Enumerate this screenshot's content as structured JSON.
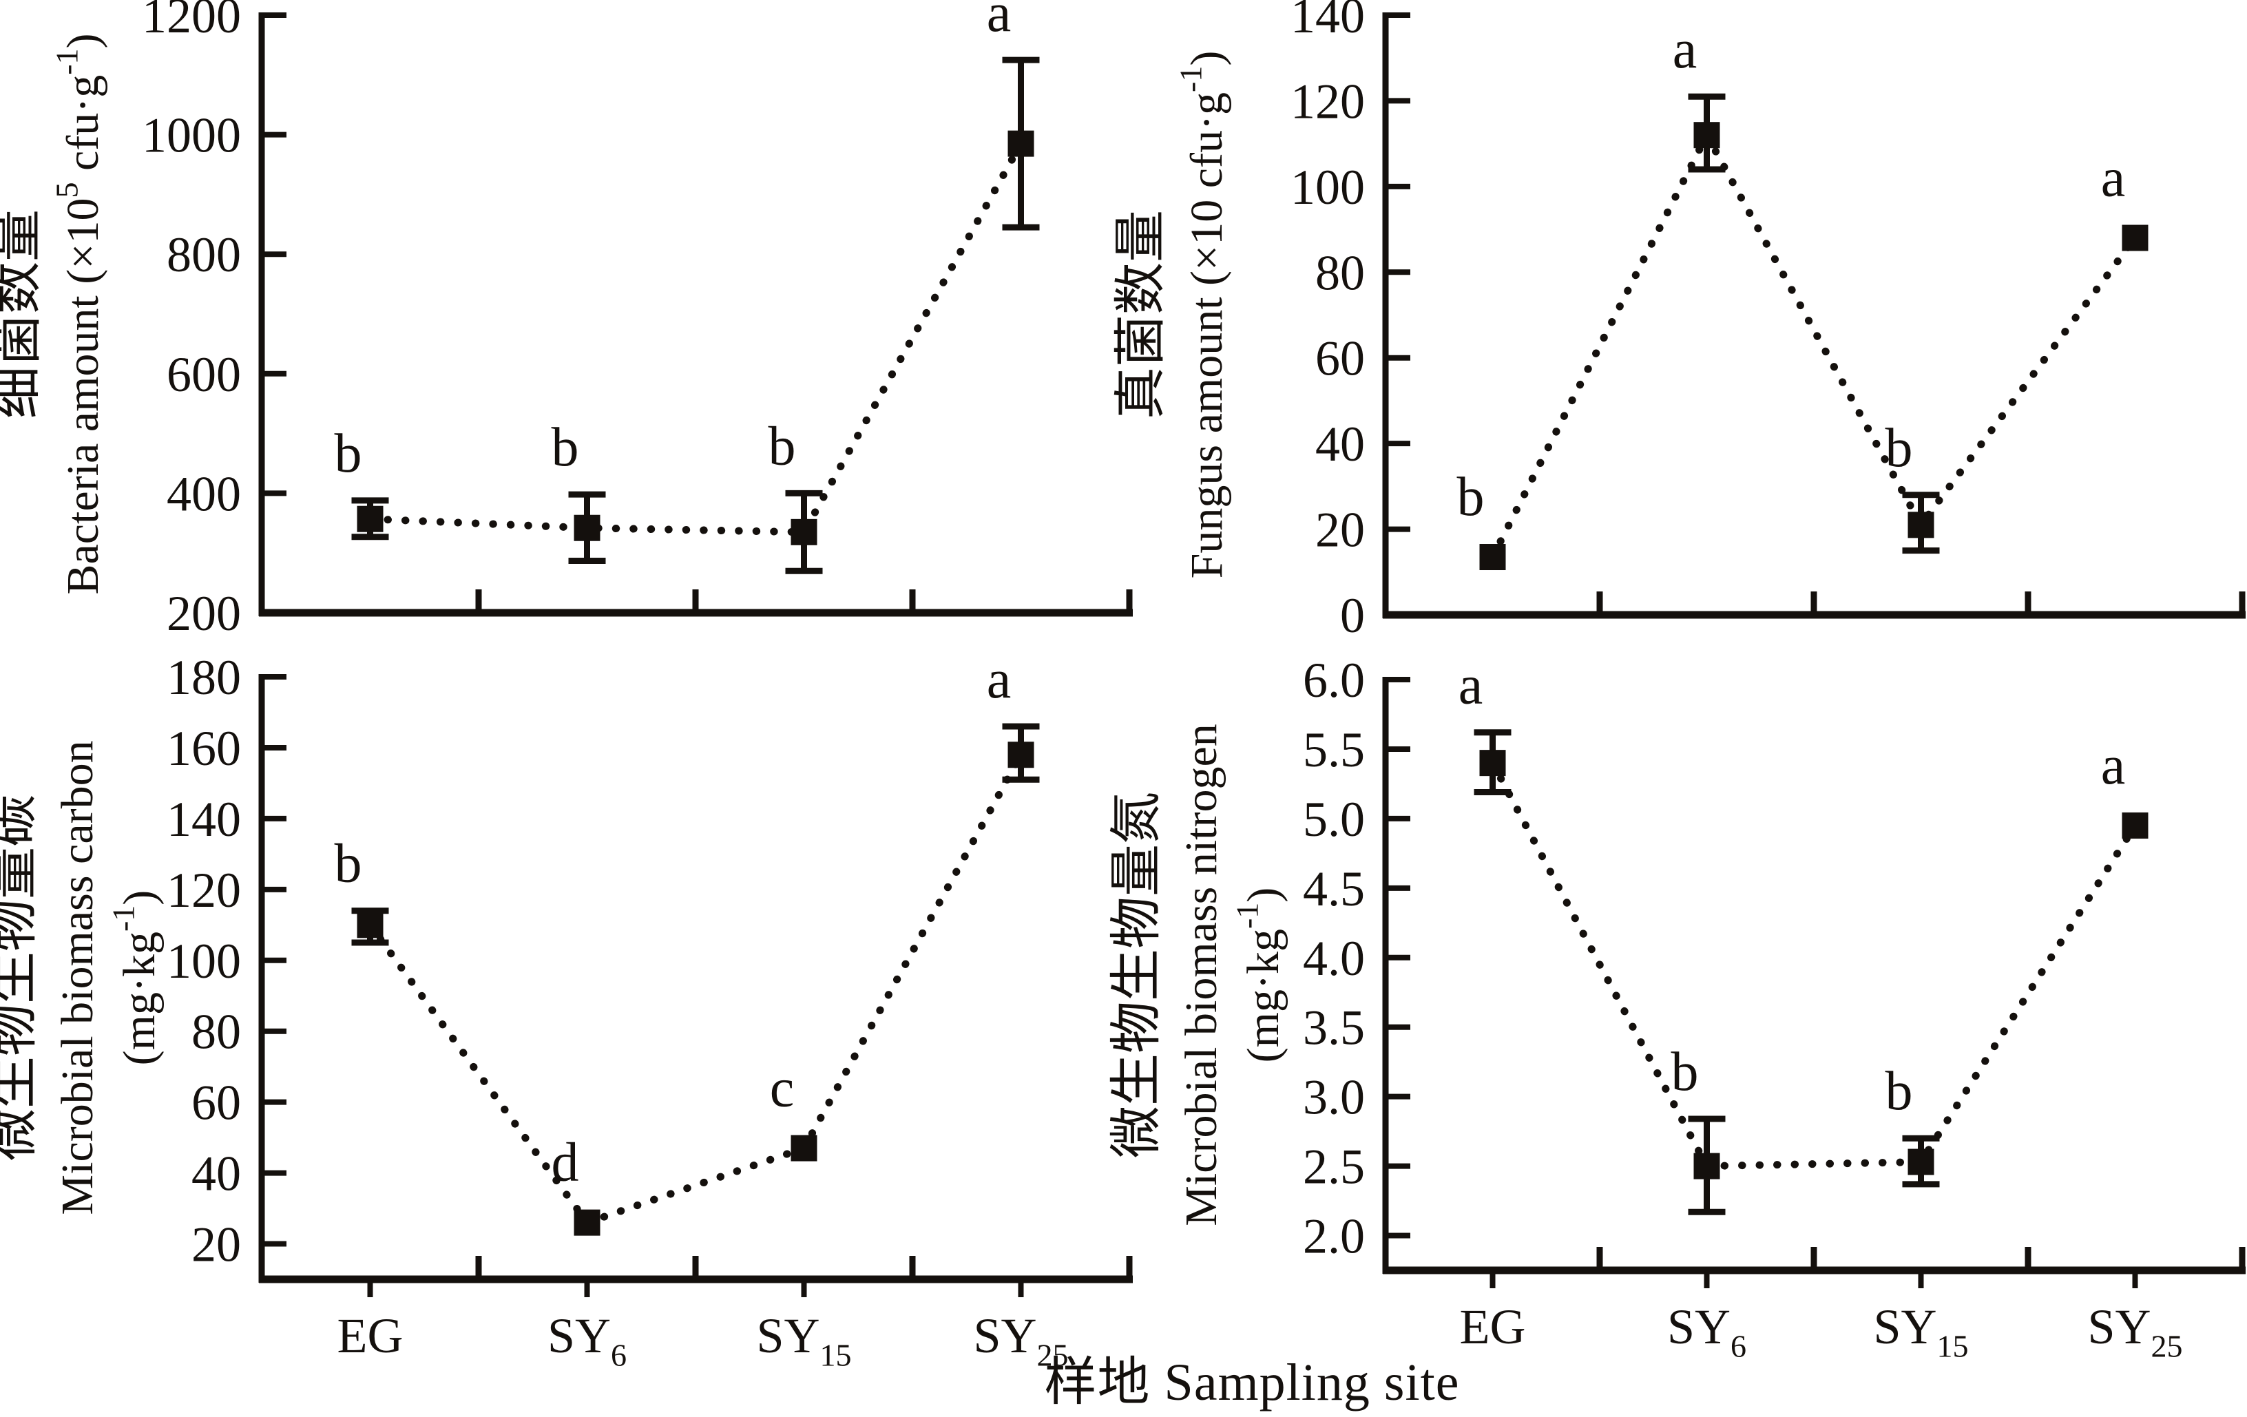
{
  "figure": {
    "xlabel": "样地 Sampling site",
    "background": "#ffffff",
    "ink_color": "#14100d"
  },
  "chart_data": [
    {
      "id": "bacteria-amount",
      "type": "line",
      "position": "top-left",
      "marker": "filled-square",
      "line_style": "dotted",
      "grid": false,
      "legend": "none",
      "title_lines": [
        [
          {
            "t": "细菌数量"
          }
        ],
        [
          {
            "t": "Bacteria amount (×10"
          },
          {
            "sup": "5"
          },
          {
            "t": " cfu·g"
          },
          {
            "sup": "-1"
          },
          {
            "t": ")"
          }
        ]
      ],
      "categories": [
        [
          {
            "t": "EG"
          }
        ],
        [
          {
            "t": "SY"
          },
          {
            "sub": "6"
          }
        ],
        [
          {
            "t": "SY"
          },
          {
            "sub": "15"
          }
        ],
        [
          {
            "t": "SY"
          },
          {
            "sub": "25"
          }
        ]
      ],
      "show_x_tick_labels": false,
      "ylim": [
        200,
        1200
      ],
      "ytick_values": [
        200,
        400,
        600,
        800,
        1000,
        1200
      ],
      "ytick_labels": [
        "200",
        "400",
        "600",
        "800",
        "1000",
        "1200"
      ],
      "points": [
        {
          "category": "EG",
          "value": 357,
          "err_low": 327,
          "err_high": 388,
          "letter": "b"
        },
        {
          "category": "SY6",
          "value": 342,
          "err_low": 287,
          "err_high": 398,
          "letter": "b"
        },
        {
          "category": "SY15",
          "value": 335,
          "err_low": 270,
          "err_high": 400,
          "letter": "b"
        },
        {
          "category": "SY25",
          "value": 985,
          "err_low": 845,
          "err_high": 1125,
          "letter": "a"
        }
      ]
    },
    {
      "id": "fungus-amount",
      "type": "line",
      "position": "top-right",
      "marker": "filled-square",
      "line_style": "dotted",
      "grid": false,
      "legend": "none",
      "title_lines": [
        [
          {
            "t": "真菌数量"
          }
        ],
        [
          {
            "t": "Fungus amount (×10 cfu·g"
          },
          {
            "sup": "-1"
          },
          {
            "t": ")"
          }
        ]
      ],
      "categories": [
        [
          {
            "t": "EG"
          }
        ],
        [
          {
            "t": "SY"
          },
          {
            "sub": "6"
          }
        ],
        [
          {
            "t": "SY"
          },
          {
            "sub": "15"
          }
        ],
        [
          {
            "t": "SY"
          },
          {
            "sub": "25"
          }
        ]
      ],
      "show_x_tick_labels": false,
      "ylim": [
        0,
        140
      ],
      "ytick_values": [
        0,
        20,
        40,
        60,
        80,
        100,
        120,
        140
      ],
      "ytick_labels": [
        "0",
        "20",
        "40",
        "60",
        "80",
        "100",
        "120",
        "140"
      ],
      "points": [
        {
          "category": "EG",
          "value": 13.5,
          "err_low": null,
          "err_high": null,
          "letter": "b"
        },
        {
          "category": "SY6",
          "value": 112,
          "err_low": 104,
          "err_high": 121,
          "letter": "a"
        },
        {
          "category": "SY15",
          "value": 21,
          "err_low": 15,
          "err_high": 28,
          "letter": "b"
        },
        {
          "category": "SY25",
          "value": 88,
          "err_low": null,
          "err_high": null,
          "letter": "a"
        }
      ]
    },
    {
      "id": "microbial-biomass-carbon",
      "type": "line",
      "position": "bottom-left",
      "marker": "filled-square",
      "line_style": "dotted",
      "grid": false,
      "legend": "none",
      "title_lines": [
        [
          {
            "t": "微生物生物量碳"
          }
        ],
        [
          {
            "t": "Microbial biomass carbon"
          }
        ],
        [
          {
            "t": "(mg·kg"
          },
          {
            "sup": "-1"
          },
          {
            "t": ")"
          }
        ]
      ],
      "categories": [
        [
          {
            "t": "EG"
          }
        ],
        [
          {
            "t": "SY"
          },
          {
            "sub": "6"
          }
        ],
        [
          {
            "t": "SY"
          },
          {
            "sub": "15"
          }
        ],
        [
          {
            "t": "SY"
          },
          {
            "sub": "25"
          }
        ]
      ],
      "show_x_tick_labels": true,
      "ylim": [
        10,
        180
      ],
      "ytick_values": [
        20,
        40,
        60,
        80,
        100,
        120,
        140,
        160,
        180
      ],
      "ytick_labels": [
        "20",
        "40",
        "60",
        "80",
        "100",
        "120",
        "140",
        "160",
        "180"
      ],
      "points": [
        {
          "category": "EG",
          "value": 110,
          "err_low": 105,
          "err_high": 114,
          "letter": "b"
        },
        {
          "category": "SY6",
          "value": 26,
          "err_low": null,
          "err_high": null,
          "letter": "d"
        },
        {
          "category": "SY15",
          "value": 47,
          "err_low": null,
          "err_high": null,
          "letter": "c"
        },
        {
          "category": "SY25",
          "value": 158,
          "err_low": 151,
          "err_high": 166,
          "letter": "a"
        }
      ]
    },
    {
      "id": "microbial-biomass-nitrogen",
      "type": "line",
      "position": "bottom-right",
      "marker": "filled-square",
      "line_style": "dotted",
      "grid": false,
      "legend": "none",
      "title_lines": [
        [
          {
            "t": "微生物生物量氮"
          }
        ],
        [
          {
            "t": "Microbial biomass nitrogen"
          }
        ],
        [
          {
            "t": "(mg·kg"
          },
          {
            "sup": "-1"
          },
          {
            "t": ")"
          }
        ]
      ],
      "categories": [
        [
          {
            "t": "EG"
          }
        ],
        [
          {
            "t": "SY"
          },
          {
            "sub": "6"
          }
        ],
        [
          {
            "t": "SY"
          },
          {
            "sub": "15"
          }
        ],
        [
          {
            "t": "SY"
          },
          {
            "sub": "25"
          }
        ]
      ],
      "show_x_tick_labels": true,
      "ylim": [
        1.75,
        6.0
      ],
      "ytick_values": [
        2.0,
        2.5,
        3.0,
        3.5,
        4.0,
        4.5,
        5.0,
        5.5,
        6.0
      ],
      "ytick_labels": [
        "2.0",
        "2.5",
        "3.0",
        "3.5",
        "4.0",
        "4.5",
        "5.0",
        "5.5",
        "6.0"
      ],
      "points": [
        {
          "category": "EG",
          "value": 5.4,
          "err_low": 5.19,
          "err_high": 5.62,
          "letter": "a"
        },
        {
          "category": "SY6",
          "value": 2.5,
          "err_low": 2.17,
          "err_high": 2.84,
          "letter": "b"
        },
        {
          "category": "SY15",
          "value": 2.53,
          "err_low": 2.37,
          "err_high": 2.7,
          "letter": "b"
        },
        {
          "category": "SY25",
          "value": 4.95,
          "err_low": null,
          "err_high": null,
          "letter": "a"
        }
      ]
    }
  ]
}
